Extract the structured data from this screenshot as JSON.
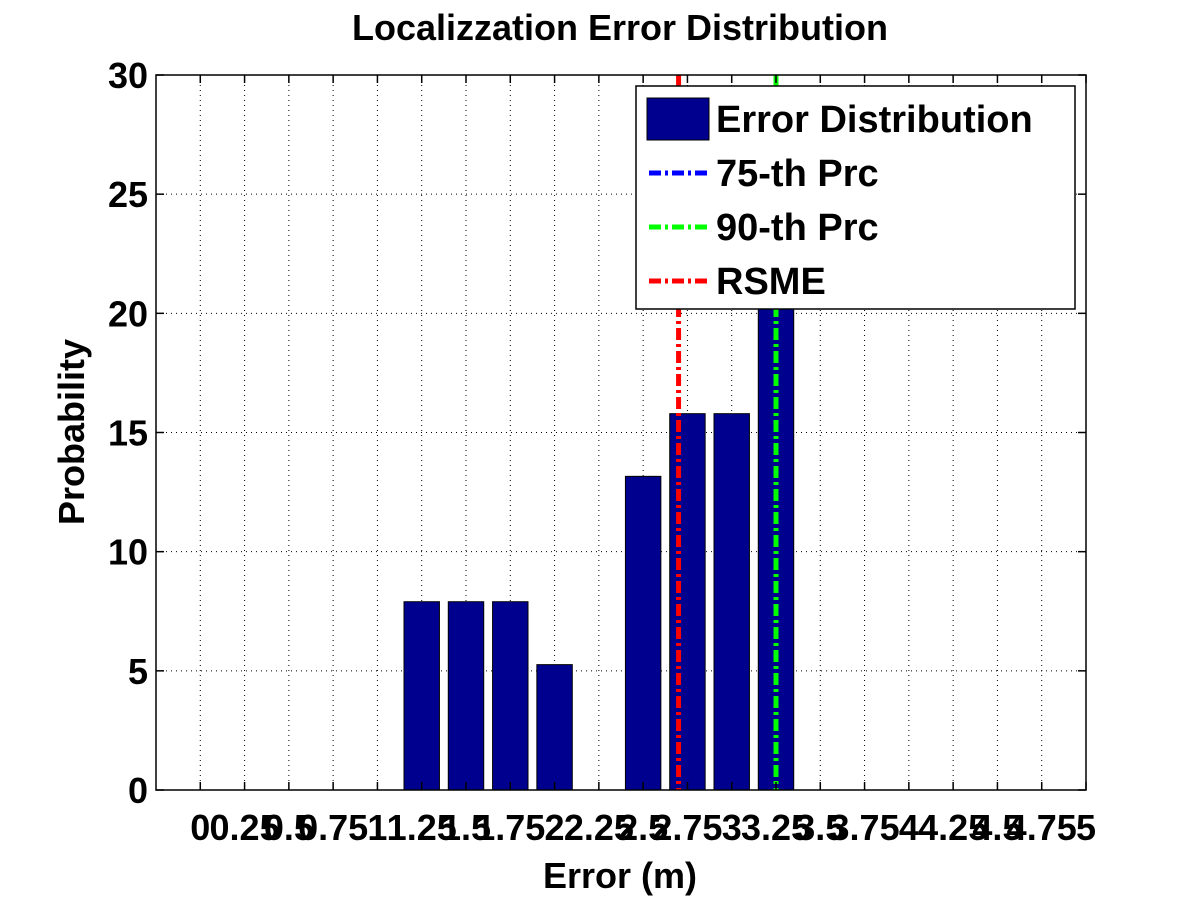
{
  "chart_data": {
    "type": "bar",
    "title": "Localizzation Error Distribution",
    "xlabel": "Error (m)",
    "ylabel": "Probability",
    "xlim": [
      -0.25,
      5.0
    ],
    "ylim": [
      0,
      30
    ],
    "x_tick_values": [
      0,
      0.25,
      0.5,
      0.75,
      1,
      1.25,
      1.5,
      1.75,
      2,
      2.25,
      2.5,
      2.75,
      3,
      3.25,
      3.5,
      3.75,
      4,
      4.25,
      4.5,
      4.75,
      5
    ],
    "x_tick_labels": [
      "0",
      "0.25",
      "0.5",
      "0.75",
      "1",
      "1.25",
      "1.5",
      "1.75",
      "2",
      "2.25",
      "2.5",
      "2.75",
      "3",
      "3.25",
      "3.5",
      "3.75",
      "4",
      "4.25",
      "4.5",
      "4.75",
      "5"
    ],
    "y_ticks": [
      0,
      5,
      10,
      15,
      20,
      25,
      30
    ],
    "grid": true,
    "bar_width": 0.2,
    "series": [
      {
        "name": "Error Distribution",
        "color": "#00008f",
        "x": [
          1.25,
          1.5,
          1.75,
          2.0,
          2.5,
          2.75,
          3.0,
          3.25
        ],
        "values": [
          7.9,
          7.9,
          7.9,
          5.26,
          13.16,
          15.79,
          15.79,
          21.05
        ]
      }
    ],
    "reference_lines": [
      {
        "name": "75-th Prc",
        "x": 3.25,
        "color": "#0000ff",
        "style": "dash-dot"
      },
      {
        "name": "90-th Prc",
        "x": 3.25,
        "color": "#00ff00",
        "style": "dash-dot"
      },
      {
        "name": "RSME",
        "x": 2.7,
        "color": "#ff0000",
        "style": "dash-dot"
      }
    ],
    "legend_position": "top-right"
  }
}
